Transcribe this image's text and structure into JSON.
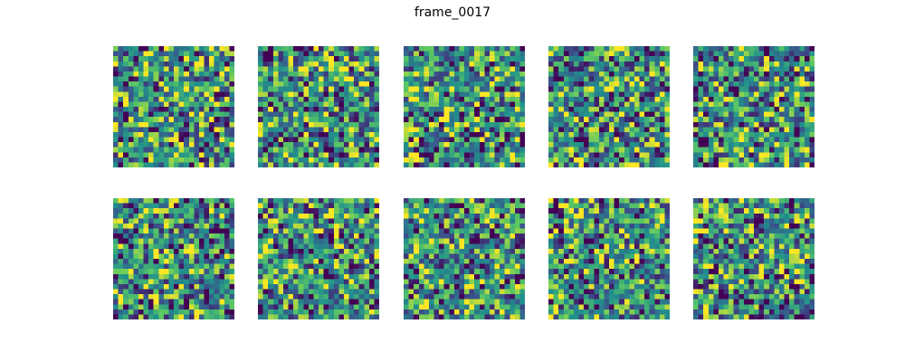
{
  "figure": {
    "title": "frame_0017"
  },
  "chart_data": {
    "type": "heatmap",
    "title": "frame_0017",
    "layout": {
      "rows": 2,
      "cols": 5
    },
    "grid_size": 24,
    "colormap": "viridis",
    "colormap_stops": [
      "#440154",
      "#3b528b",
      "#21918c",
      "#5ec962",
      "#fde725"
    ],
    "axes_visible": false,
    "panels": [
      {
        "seed": 1701
      },
      {
        "seed": 2702
      },
      {
        "seed": 3703
      },
      {
        "seed": 4704
      },
      {
        "seed": 5705
      },
      {
        "seed": 6706
      },
      {
        "seed": 7707
      },
      {
        "seed": 8708
      },
      {
        "seed": 9709
      },
      {
        "seed": 10710
      }
    ]
  }
}
